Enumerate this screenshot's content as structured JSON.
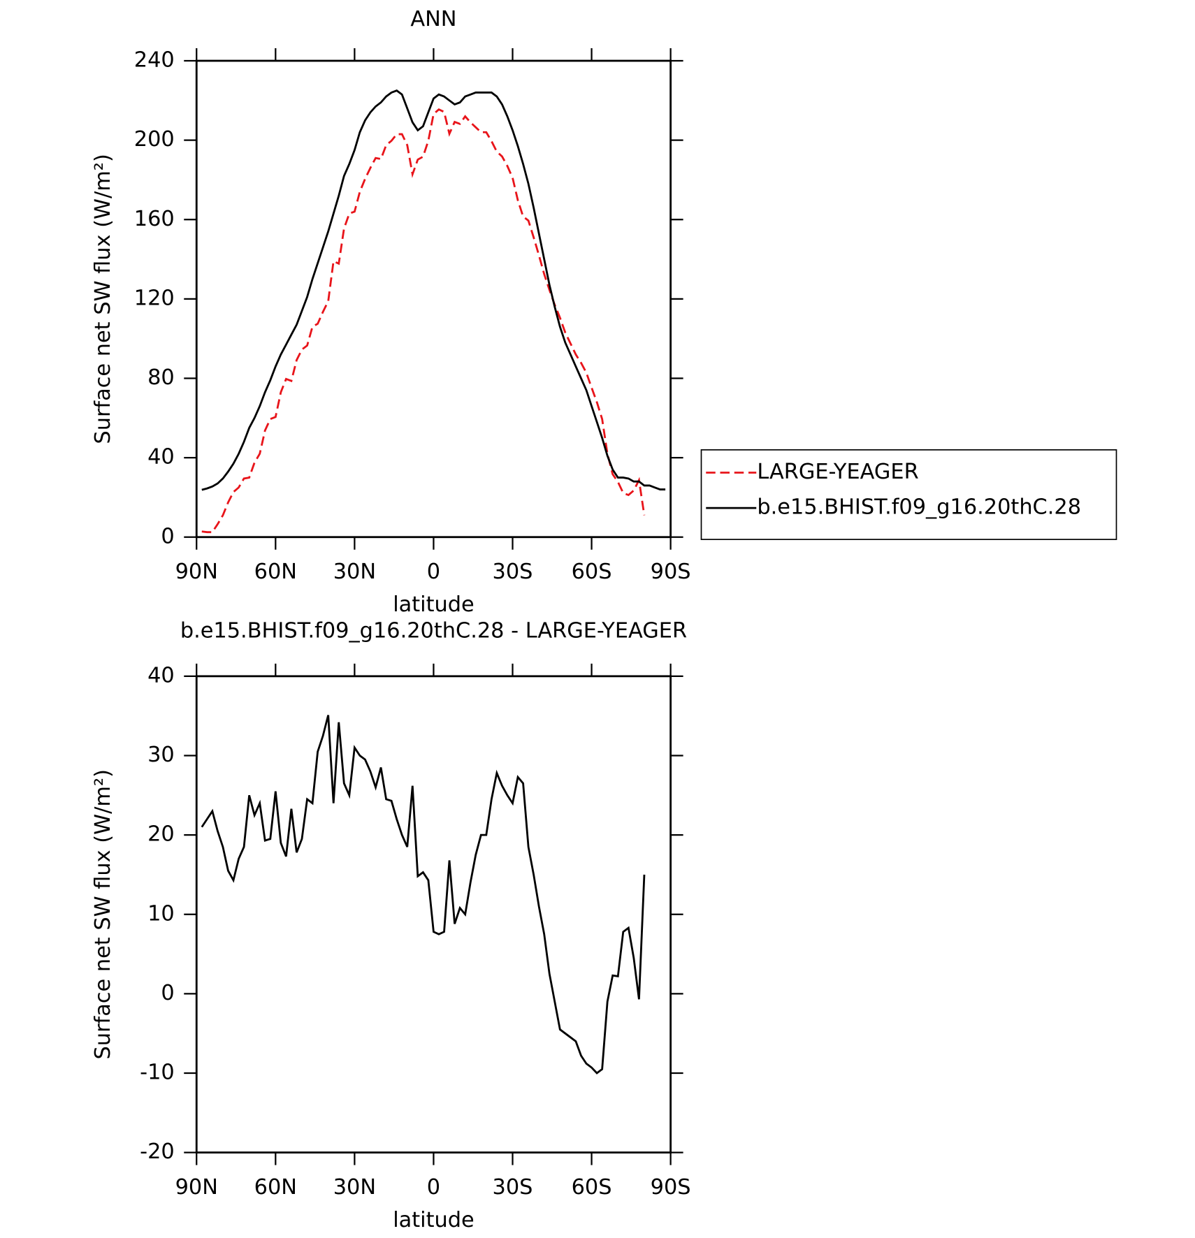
{
  "chart_data": [
    {
      "type": "line",
      "title": "ANN",
      "xlabel": "latitude",
      "ylabel": "Surface net SW flux (W/m²)",
      "x": [
        88,
        86,
        84,
        82,
        80,
        78,
        76,
        74,
        72,
        70,
        68,
        66,
        64,
        62,
        60,
        58,
        56,
        54,
        52,
        50,
        48,
        46,
        44,
        42,
        40,
        38,
        36,
        34,
        32,
        30,
        28,
        26,
        24,
        22,
        20,
        18,
        16,
        14,
        12,
        10,
        8,
        6,
        4,
        2,
        0,
        -2,
        -4,
        -6,
        -8,
        -10,
        -12,
        -14,
        -16,
        -18,
        -20,
        -22,
        -24,
        -26,
        -28,
        -30,
        -32,
        -34,
        -36,
        -38,
        -40,
        -42,
        -44,
        -46,
        -48,
        -50,
        -52,
        -54,
        -56,
        -58,
        -60,
        -62,
        -64,
        -66,
        -68,
        -70,
        -72,
        -74,
        -76,
        -78,
        -80,
        -82,
        -84,
        -86,
        -88
      ],
      "series": [
        {
          "name": "LARGE-YEAGER",
          "color": "#e8141a",
          "dash": true,
          "values": [
            2.8,
            2.5,
            2.5,
            6.5,
            11,
            17.5,
            22.7,
            25,
            29.5,
            30,
            37.5,
            42,
            53.7,
            59.5,
            60.5,
            73,
            79.7,
            78.7,
            89.2,
            94.5,
            96.5,
            106,
            107.5,
            113.5,
            118.9,
            139,
            137.8,
            155.5,
            163,
            164,
            174,
            180.5,
            186,
            191,
            190.5,
            197.5,
            199.7,
            203,
            203,
            197.5,
            182.8,
            190.2,
            191.7,
            199.7,
            213.2,
            215.5,
            214.2,
            203.2,
            209.2,
            208.2,
            212,
            209,
            206.5,
            204,
            204,
            199.5,
            194.2,
            191.8,
            187,
            181,
            169.7,
            161.5,
            159.5,
            151,
            142,
            132.5,
            124.5,
            117,
            110.5,
            103,
            97.5,
            92,
            87.8,
            82.8,
            75.3,
            68,
            59.5,
            42,
            31.7,
            27.8,
            22.2,
            21.2,
            23.5,
            28.7,
            11,
            null,
            null,
            null,
            null
          ]
        },
        {
          "name": "b.e15.BHIST.f09_g16.20thC.28",
          "color": "#000000",
          "dash": false,
          "values": [
            23.8,
            24.5,
            25.5,
            27,
            29.5,
            33,
            37,
            42,
            48,
            55,
            60,
            66,
            73,
            79,
            86,
            92,
            97,
            102,
            107,
            114,
            121,
            130,
            138,
            146,
            154,
            163,
            172,
            182,
            188,
            195,
            204,
            210,
            214,
            217,
            219,
            222,
            224,
            225,
            223,
            216,
            209,
            205,
            207,
            214,
            221,
            223,
            222,
            220,
            218,
            219,
            222,
            223,
            224,
            224,
            224,
            224,
            222,
            218,
            212,
            205,
            197,
            188,
            178,
            166,
            153,
            140,
            127,
            116,
            106,
            98,
            92,
            86,
            80,
            74,
            66,
            58,
            50,
            41,
            34,
            30,
            30,
            29.5,
            28,
            28,
            26,
            26,
            25,
            24,
            24
          ]
        }
      ],
      "xlim": [
        90,
        -90
      ],
      "xticks": [
        {
          "value": 90,
          "label": "90N"
        },
        {
          "value": 60,
          "label": "60N"
        },
        {
          "value": 30,
          "label": "30N"
        },
        0,
        {
          "value": -30,
          "label": "30S"
        },
        {
          "value": -60,
          "label": "60S"
        },
        {
          "value": -90,
          "label": "90S"
        }
      ],
      "ylim": [
        0,
        240
      ],
      "yticks": [
        0,
        40,
        80,
        120,
        160,
        200,
        240
      ],
      "legend": "right"
    },
    {
      "type": "line",
      "title": "b.e15.BHIST.f09_g16.20thC.28 - LARGE-YEAGER",
      "xlabel": "latitude",
      "ylabel": "Surface net SW flux (W/m²)",
      "x": [
        88,
        86,
        84,
        82,
        80,
        78,
        76,
        74,
        72,
        70,
        68,
        66,
        64,
        62,
        60,
        58,
        56,
        54,
        52,
        50,
        48,
        46,
        44,
        42,
        40,
        38,
        36,
        34,
        32,
        30,
        28,
        26,
        24,
        22,
        20,
        18,
        16,
        14,
        12,
        10,
        8,
        6,
        4,
        2,
        0,
        -2,
        -4,
        -6,
        -8,
        -10,
        -12,
        -14,
        -16,
        -18,
        -20,
        -22,
        -24,
        -26,
        -28,
        -30,
        -32,
        -34,
        -36,
        -38,
        -40,
        -42,
        -44,
        -46,
        -48,
        -50,
        -52,
        -54,
        -56,
        -58,
        -60,
        -62,
        -64,
        -66,
        -68,
        -70,
        -72,
        -74,
        -76,
        -78,
        -80
      ],
      "series": [
        {
          "color": "#000000",
          "dash": false,
          "values": [
            21,
            22,
            23,
            20.5,
            18.5,
            15.5,
            14.3,
            17,
            18.5,
            25,
            22.5,
            24,
            19.3,
            19.5,
            25.5,
            19,
            17.3,
            23.3,
            17.8,
            19.5,
            24.5,
            24,
            30.5,
            32.5,
            35.1,
            24,
            34.2,
            26.5,
            25,
            31,
            30,
            29.5,
            28,
            26,
            28.5,
            24.5,
            24.3,
            22,
            20,
            18.5,
            26.2,
            14.8,
            15.3,
            14.3,
            7.8,
            7.5,
            7.8,
            16.8,
            8.8,
            10.8,
            10,
            14,
            17.5,
            20,
            20,
            24.5,
            27.8,
            26.2,
            25,
            24,
            27.3,
            26.5,
            18.5,
            15,
            11,
            7.5,
            2.5,
            -1,
            -4.5,
            -5,
            -5.5,
            -6,
            -7.8,
            -8.8,
            -9.3,
            -10,
            -9.5,
            -1,
            2.3,
            2.2,
            7.8,
            8.3,
            4.5,
            -0.7,
            15
          ]
        }
      ],
      "xlim": [
        90,
        -90
      ],
      "xticks": [
        {
          "value": 90,
          "label": "90N"
        },
        {
          "value": 60,
          "label": "60N"
        },
        {
          "value": 30,
          "label": "30N"
        },
        0,
        {
          "value": -30,
          "label": "30S"
        },
        {
          "value": -60,
          "label": "60S"
        },
        {
          "value": -90,
          "label": "90S"
        }
      ],
      "ylim": [
        -20,
        40
      ],
      "yticks": [
        -20,
        -10,
        0,
        10,
        20,
        30,
        40
      ]
    }
  ]
}
